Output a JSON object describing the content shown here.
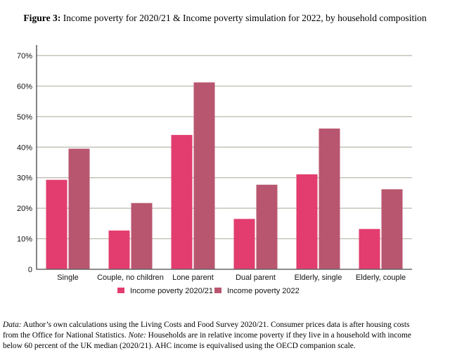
{
  "figure": {
    "label": "Figure 3:",
    "title": "Income poverty for 2020/21 & Income poverty simulation for 2022, by household composition"
  },
  "chart_data": {
    "type": "bar",
    "title": "Income poverty for 2020/21 & Income poverty simulation for 2022, by household composition",
    "xlabel": "",
    "ylabel": "",
    "categories": [
      "Single",
      "Couple, no children",
      "Lone parent",
      "Dual parent",
      "Elderly, single",
      "Elderly, couple"
    ],
    "series": [
      {
        "name": "Income poverty 2020/21",
        "color": "#e23d6e",
        "values": [
          29.3,
          12.7,
          44.0,
          16.5,
          31.1,
          13.2
        ]
      },
      {
        "name": "Income poverty 2022",
        "color": "#b9566f",
        "values": [
          39.5,
          21.7,
          61.2,
          27.7,
          46.1,
          26.2
        ]
      }
    ],
    "ylim": [
      0,
      70
    ],
    "yticks": [
      0,
      10,
      20,
      30,
      40,
      50,
      60,
      70
    ],
    "ytick_labels": [
      "0",
      "10%",
      "20%",
      "30%",
      "40%",
      "50%",
      "60%",
      "70%"
    ],
    "unit": "%",
    "grid": true,
    "gridline_color": "#b8b8ac",
    "legend_position": "bottom-center"
  },
  "caption": {
    "data_label": "Data:",
    "data_text": " Author’s own calculations using the Living Costs and Food Survey 2020/21. Consumer prices data is after housing costs",
    "line2_text": "from the Office for National Statistics. ",
    "note_label": "Note:",
    "note_text": " Households are in relative income poverty if they live in a household with income",
    "line3_text": "below 60 percent of the UK median (2020/21). AHC income is equivalised using the OECD companion scale."
  }
}
